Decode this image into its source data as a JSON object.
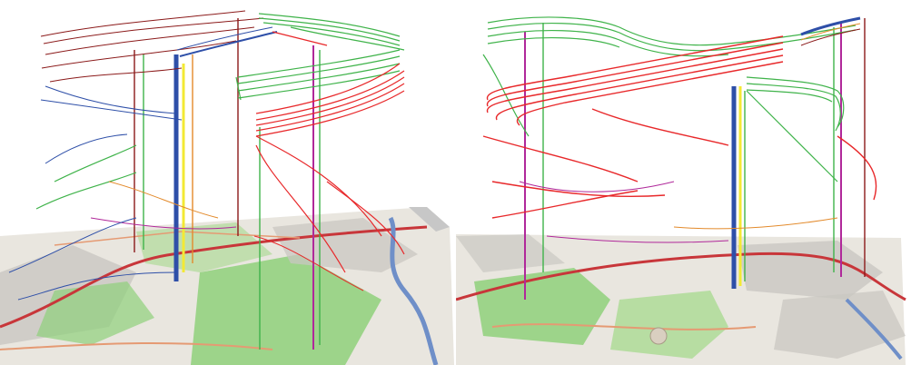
{
  "figure": {
    "panels": [
      {
        "id": "left",
        "description_hidden": true
      },
      {
        "id": "right",
        "description_hidden": true
      }
    ],
    "colors": {
      "background": "#ffffff",
      "map_base": "#e9e6df",
      "map_park": "#8fd07b",
      "map_urban": "#c9c7c2",
      "water": "#6f8fc8",
      "road": "#e59a73",
      "trail_red": "#e8282a",
      "trail_green": "#3fb34a",
      "trail_blue": "#2e4fa8",
      "trail_darkred": "#8b1a1a",
      "trail_purple": "#b0289a",
      "trail_yellow": "#f3e934",
      "trail_orange": "#e38a2b"
    }
  }
}
